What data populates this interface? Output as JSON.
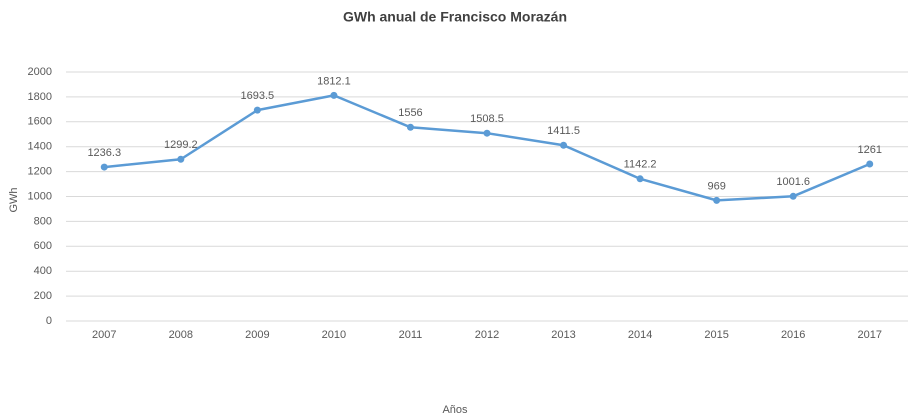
{
  "chart_data": {
    "type": "line",
    "title": "GWh anual de Francisco Morazán",
    "x_label": "Años",
    "y_label": "GWh",
    "categories": [
      "2007",
      "2008",
      "2009",
      "2010",
      "2011",
      "2012",
      "2013",
      "2014",
      "2015",
      "2016",
      "2017"
    ],
    "values": [
      1236.3,
      1299.2,
      1693.5,
      1812.1,
      1556,
      1508.5,
      1411.5,
      1142.2,
      969,
      1001.6,
      1261
    ],
    "color": "#5b9bd5",
    "data_labels": true,
    "grid": true,
    "ylim": [
      0,
      2000
    ],
    "yticks": [
      0,
      200,
      400,
      600,
      800,
      1000,
      1200,
      1400,
      1600,
      1800,
      2000
    ]
  }
}
